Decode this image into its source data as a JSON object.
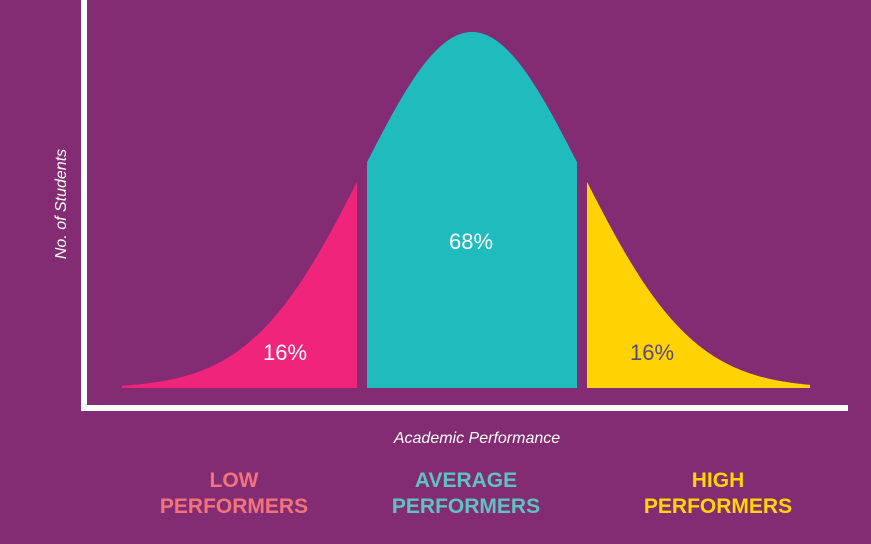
{
  "chart_data": {
    "type": "area",
    "title": "",
    "xlabel": "Academic Performance",
    "ylabel": "No. of Students",
    "curve": "normal-distribution",
    "grid": false,
    "legend": "bottom",
    "segments": [
      {
        "label": "16%",
        "value": 16,
        "color": "#f0247b",
        "label_color": "#ffffff"
      },
      {
        "label": "68%",
        "value": 68,
        "color": "#20bcbd",
        "label_color": "#ffffff"
      },
      {
        "label": "16%",
        "value": 16,
        "color": "#ffd203",
        "label_color": "#5a4a7a"
      }
    ],
    "groups": [
      {
        "line1": "LOW",
        "line2": "PERFORMERS",
        "color": "#f2747b"
      },
      {
        "line1": "AVERAGE",
        "line2": "PERFORMERS",
        "color": "#5ec3c2"
      },
      {
        "line1": "HIGH",
        "line2": "PERFORMERS",
        "color": "#ffd600"
      }
    ]
  },
  "colors": {
    "background": "#832c73",
    "axis": "#ffffff"
  }
}
